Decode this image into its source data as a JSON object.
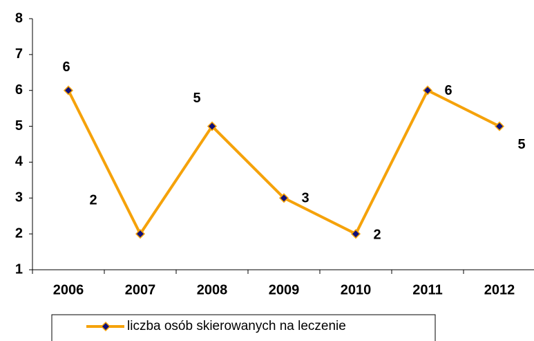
{
  "chart_data": {
    "type": "line",
    "categories": [
      "2006",
      "2007",
      "2008",
      "2009",
      "2010",
      "2011",
      "2012"
    ],
    "series": [
      {
        "name": "liczba osób skierowanych na leczenie",
        "color": "#f5a20a",
        "marker_color": "#10107a",
        "values": [
          6,
          2,
          5,
          3,
          2,
          6,
          5
        ]
      }
    ],
    "ylim": [
      1,
      8
    ],
    "yticks": [
      1,
      2,
      3,
      4,
      5,
      6,
      7,
      8
    ],
    "grid": false,
    "legend": "bottom"
  }
}
